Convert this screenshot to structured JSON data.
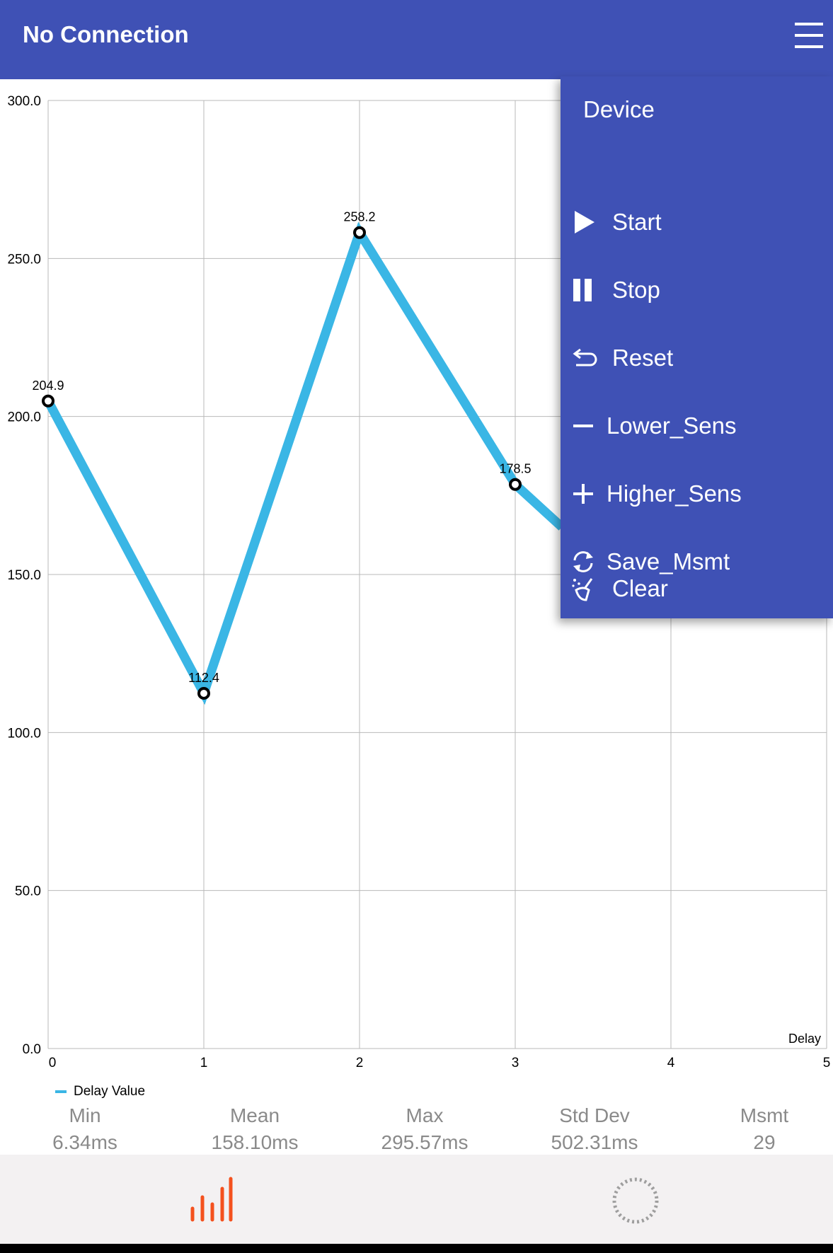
{
  "app_bar": {
    "title": "No Connection",
    "menu_icon": "hamburger-menu-icon",
    "background": "#3f51b5"
  },
  "chart_data": {
    "type": "line",
    "x": [
      0,
      1,
      2,
      3
    ],
    "series": [
      {
        "name": "Delay Value",
        "values": [
          204.9,
          112.4,
          258.2,
          178.5
        ],
        "color": "#3ab6e5"
      }
    ],
    "point_labels": [
      "204.9",
      "112.4",
      "258.2",
      "178.5"
    ],
    "xlabel": "Delay",
    "ylabel": "",
    "xlim": [
      0,
      5
    ],
    "ylim": [
      0,
      300
    ],
    "x_ticks": [
      "0",
      "1",
      "2",
      "3",
      "4",
      "5"
    ],
    "y_ticks": [
      "0.0",
      "50.0",
      "100.0",
      "150.0",
      "200.0",
      "250.0",
      "300.0"
    ],
    "grid": true,
    "legend": "bottom-left",
    "partial_continuation_value_at_3_3": 165
  },
  "legend": {
    "label": "Delay Value"
  },
  "stats": [
    {
      "label": "Min",
      "value": "6.34ms"
    },
    {
      "label": "Mean",
      "value": "158.10ms"
    },
    {
      "label": "Max",
      "value": "295.57ms"
    },
    {
      "label": "Std Dev",
      "value": "502.31ms"
    },
    {
      "label": "Msmt",
      "value": "29"
    }
  ],
  "menu": {
    "header": "Device",
    "items": [
      {
        "label": "Start",
        "icon": "play-icon"
      },
      {
        "label": "Stop",
        "icon": "pause-icon"
      },
      {
        "label": "Reset",
        "icon": "reset-arrow-icon"
      },
      {
        "label": "Lower_Sens",
        "icon": "minus-icon"
      },
      {
        "label": "Higher_Sens",
        "icon": "plus-icon"
      },
      {
        "label": "Save_Msmt",
        "icon": "sync-icon"
      },
      {
        "label": "Clear",
        "icon": "broom-icon"
      }
    ]
  },
  "bottom_nav": {
    "items": [
      {
        "icon": "bar-chart-icon",
        "color": "#f4511e",
        "active": true
      },
      {
        "icon": "loading-circle-icon",
        "color": "#9e9e9e",
        "active": false
      }
    ]
  }
}
